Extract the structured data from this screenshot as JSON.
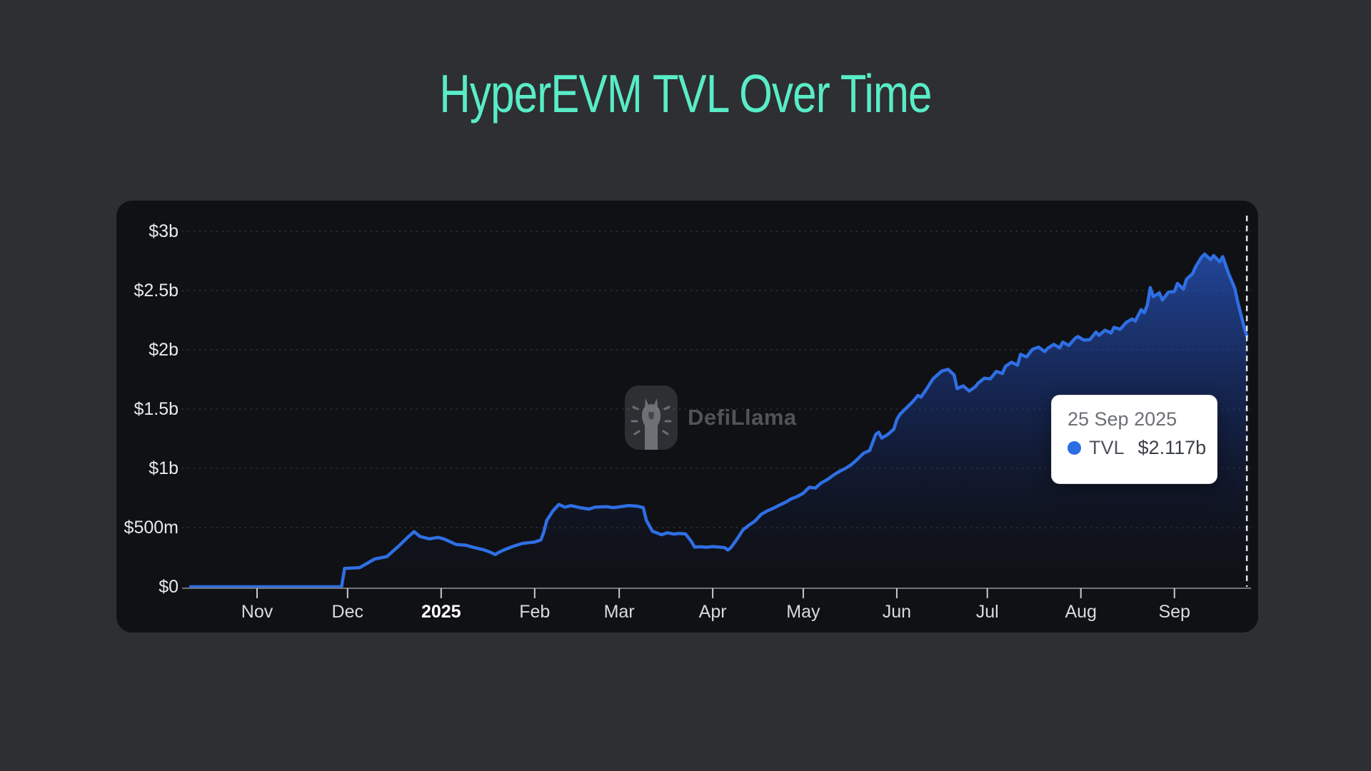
{
  "page": {
    "title": "HyperEVM TVL Over Time"
  },
  "watermark": {
    "brand": "DefiLlama"
  },
  "tooltip": {
    "date": "25 Sep 2025",
    "series": "TVL",
    "value": "$2.117b"
  },
  "colors": {
    "title_teal": "#58ecc7",
    "line_blue": "#2f6fe4",
    "tooltip_dot_blue": "#2b6de2",
    "page_background": "#2e2f32",
    "card_background": "#101115"
  },
  "chart_data": {
    "type": "area",
    "title": "HyperEVM TVL Over Time",
    "unit": "USD",
    "grid": "dotted-horizontal",
    "legend": "none",
    "x_axis": {
      "start_date": "2024-10-01",
      "ticks": [
        {
          "label": "Nov",
          "day": 31
        },
        {
          "label": "Dec",
          "day": 61
        },
        {
          "label": "2025",
          "day": 92,
          "bold": true
        },
        {
          "label": "Feb",
          "day": 123
        },
        {
          "label": "Mar",
          "day": 151
        },
        {
          "label": "Apr",
          "day": 182
        },
        {
          "label": "May",
          "day": 212
        },
        {
          "label": "Jun",
          "day": 243
        },
        {
          "label": "Jul",
          "day": 273
        },
        {
          "label": "Aug",
          "day": 304
        },
        {
          "label": "Sep",
          "day": 335
        }
      ]
    },
    "y_axis": {
      "labels": [
        "$0",
        "$500m",
        "$1b",
        "$1.5b",
        "$2b",
        "$2.5b",
        "$3b"
      ],
      "values_m": [
        0,
        500,
        1000,
        1500,
        2000,
        2500,
        3000
      ],
      "max_m": 3000
    },
    "crosshair": {
      "day": 359,
      "date": "25 Sep 2025",
      "value_m": 2117
    },
    "series": [
      {
        "name": "TVL",
        "color": "#2f6fe4",
        "x_unit": "days_since_2024-10-01",
        "days": [
          9,
          59,
          60,
          65,
          70,
          74,
          78,
          81,
          83,
          85,
          88,
          91,
          93,
          97,
          100,
          103,
          106,
          108,
          110,
          111,
          113,
          116,
          119,
          123,
          125,
          126,
          127,
          129,
          131,
          133,
          135,
          138,
          141,
          143,
          147,
          149,
          152,
          154,
          157,
          159,
          160,
          162,
          165,
          167,
          169,
          171,
          173,
          175,
          176,
          178,
          180,
          182,
          184,
          186,
          187,
          188,
          190,
          192,
          194,
          196,
          198,
          200,
          202,
          204,
          206,
          208,
          210,
          212,
          214,
          216,
          218,
          220,
          222,
          224,
          226,
          228,
          230,
          232,
          234,
          236,
          237,
          238,
          240,
          242,
          243,
          244,
          246,
          248,
          250,
          251,
          253,
          255,
          257,
          258,
          260,
          262,
          263,
          265,
          267,
          269,
          270,
          272,
          274,
          276,
          278,
          279,
          281,
          283,
          284,
          286,
          288,
          290,
          292,
          293,
          295,
          297,
          298,
          300,
          302,
          303,
          305,
          307,
          309,
          310,
          312,
          314,
          315,
          317,
          319,
          321,
          322,
          324,
          325,
          326,
          327,
          328,
          330,
          331,
          333,
          335,
          336,
          338,
          339,
          341,
          342,
          344,
          345,
          347,
          348,
          350,
          351,
          352,
          353,
          355,
          356,
          357,
          358,
          359
        ],
        "values_m": [
          0,
          0,
          155,
          162,
          235,
          255,
          345,
          420,
          465,
          425,
          405,
          417,
          403,
          357,
          352,
          331,
          313,
          295,
          272,
          290,
          313,
          343,
          367,
          378,
          395,
          460,
          560,
          640,
          695,
          672,
          685,
          668,
          656,
          672,
          676,
          668,
          678,
          686,
          680,
          668,
          560,
          470,
          440,
          456,
          445,
          450,
          446,
          380,
          335,
          338,
          334,
          340,
          336,
          330,
          310,
          330,
          400,
          480,
          520,
          555,
          610,
          640,
          662,
          688,
          712,
          742,
          762,
          790,
          840,
          833,
          878,
          905,
          943,
          974,
          1000,
          1032,
          1078,
          1128,
          1150,
          1285,
          1305,
          1255,
          1285,
          1330,
          1410,
          1455,
          1505,
          1555,
          1615,
          1600,
          1675,
          1755,
          1800,
          1822,
          1835,
          1788,
          1672,
          1695,
          1652,
          1688,
          1720,
          1760,
          1755,
          1818,
          1800,
          1860,
          1895,
          1870,
          1962,
          1940,
          2005,
          2022,
          1985,
          2012,
          2046,
          2016,
          2065,
          2036,
          2095,
          2112,
          2082,
          2086,
          2150,
          2122,
          2165,
          2142,
          2190,
          2172,
          2230,
          2260,
          2242,
          2340,
          2312,
          2376,
          2525,
          2448,
          2480,
          2420,
          2487,
          2492,
          2560,
          2512,
          2595,
          2642,
          2700,
          2782,
          2807,
          2760,
          2795,
          2742,
          2786,
          2712,
          2640,
          2520,
          2400,
          2300,
          2200,
          2117
        ]
      }
    ]
  }
}
